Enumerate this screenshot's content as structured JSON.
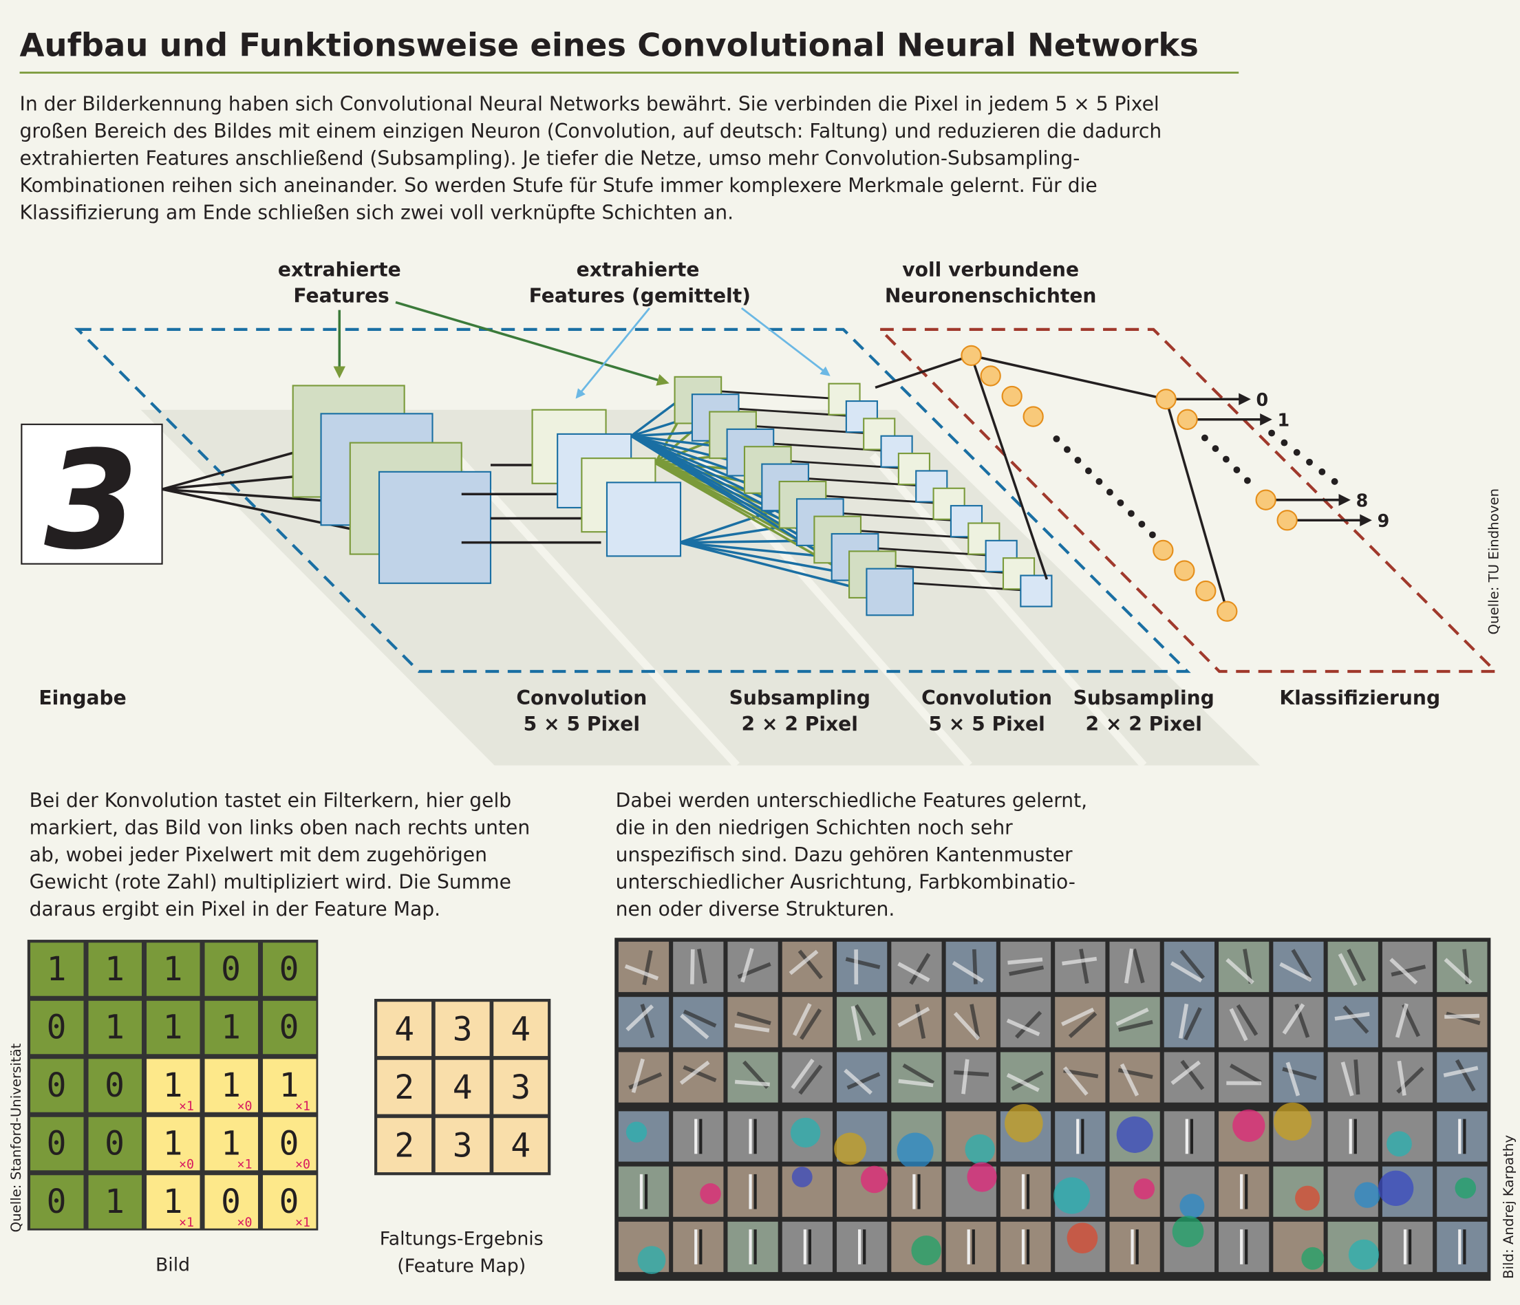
{
  "title": "Aufbau und Funktionsweise eines Convolutional Neural Networks",
  "intro": [
    "In der Bilderkennung haben sich Convolutional Neural Networks bewährt. Sie verbinden die Pixel in jedem 5 × 5 Pixel",
    "großen Bereich des Bildes mit einem einzigen Neuron (Convolution, auf deutsch: Faltung) und reduzieren die dadurch",
    "extrahierten Features anschließend (Subsampling). Je tiefer die Netze, umso mehr Convolution-Subsampling-",
    "Kombinationen reihen sich aneinander. So werden Stufe für Stufe immer komplexere Merkmale gelernt. Für die",
    "Klassifizierung am Ende schließen sich zwei voll verknüpfte Schichten an."
  ],
  "diagram": {
    "callouts": {
      "features": [
        "extrahierte",
        "Features"
      ],
      "features_avg": [
        "extrahierte",
        "Features (gemittelt)"
      ],
      "fully_connected": [
        "voll verbundene",
        "Neuronenschichten"
      ]
    },
    "input_digit": "3",
    "stages": [
      {
        "label": "Eingabe",
        "sub": ""
      },
      {
        "label": "Convolution",
        "sub": "5 × 5 Pixel"
      },
      {
        "label": "Subsampling",
        "sub": "2 × 2 Pixel"
      },
      {
        "label": "Convolution",
        "sub": "5 × 5 Pixel"
      },
      {
        "label": "Subsampling",
        "sub": "2 × 2 Pixel"
      },
      {
        "label": "Klassifizierung",
        "sub": ""
      }
    ],
    "outputs": [
      "0",
      "1",
      "8",
      "9"
    ],
    "source": "Quelle: TU Eindhoven",
    "colors": {
      "green": "#7a9a3a",
      "blue": "#1a6fa3",
      "light_blue": "#6bb8e4",
      "red": "#a0392c",
      "neuron": "#f8c97a"
    }
  },
  "convolution_text": [
    "Bei der Konvolution tastet ein Filterkern, hier gelb",
    "markiert, das Bild von links oben nach rechts unten",
    "ab, wobei jeder Pixelwert mit dem zugehörigen",
    "Gewicht (rote Zahl) multipliziert wird. Die Summe",
    "daraus ergibt ein Pixel in der Feature Map."
  ],
  "features_text": [
    "Dabei werden unterschiedliche Features gelernt,",
    "die in den niedrigen Schichten noch sehr",
    "unspezifisch sind. Dazu gehören Kantenmuster",
    "unterschiedlicher Ausrichtung, Farbkombinatio-",
    "nen oder diverse Strukturen."
  ],
  "image_grid": [
    [
      "1",
      "1",
      "1",
      "0",
      "0"
    ],
    [
      "0",
      "1",
      "1",
      "1",
      "0"
    ],
    [
      "0",
      "0",
      "1",
      "1",
      "1"
    ],
    [
      "0",
      "0",
      "1",
      "1",
      "0"
    ],
    [
      "0",
      "1",
      "1",
      "0",
      "0"
    ]
  ],
  "kernel_weights": [
    [
      "×1",
      "×0",
      "×1"
    ],
    [
      "×0",
      "×1",
      "×0"
    ],
    [
      "×1",
      "×0",
      "×1"
    ]
  ],
  "feature_map": [
    [
      "4",
      "3",
      "4"
    ],
    [
      "2",
      "4",
      "3"
    ],
    [
      "2",
      "3",
      "4"
    ]
  ],
  "image_label": "Bild",
  "feature_map_label": [
    "Faltungs-Ergebnis",
    "(Feature Map)"
  ],
  "stanford_source": "Quelle: Stanford-Universität",
  "karpathy_source": "Bild: Andrej Karpathy"
}
